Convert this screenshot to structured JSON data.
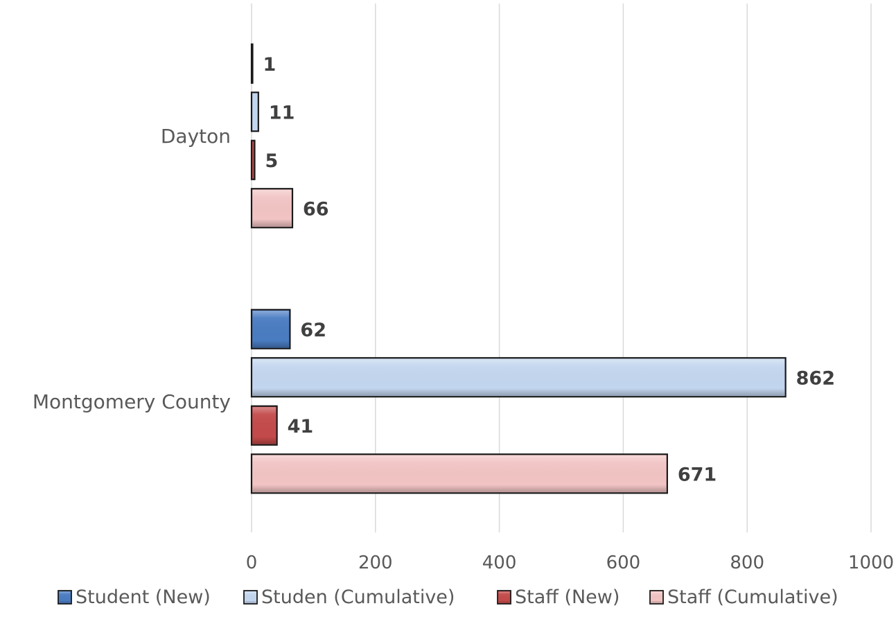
{
  "chart_data": {
    "type": "bar",
    "orientation": "horizontal",
    "categories": [
      "Dayton",
      "Montgomery County"
    ],
    "series": [
      {
        "name": "Student (New)",
        "values": [
          1,
          62
        ],
        "color": "#4a7cc2"
      },
      {
        "name": "Studen (Cumulative)",
        "values": [
          11,
          862
        ],
        "color": "#c3d6ef"
      },
      {
        "name": "Staff (New)",
        "values": [
          5,
          41
        ],
        "color": "#c44a4a"
      },
      {
        "name": "Staff (Cumulative)",
        "values": [
          66,
          671
        ],
        "color": "#f2c4c4"
      }
    ],
    "xlim": [
      0,
      1000
    ],
    "x_ticks": [
      "0",
      "200",
      "400",
      "600",
      "800",
      "1000"
    ],
    "grid": "vertical",
    "legend_position": "bottom",
    "data_labels": true
  }
}
